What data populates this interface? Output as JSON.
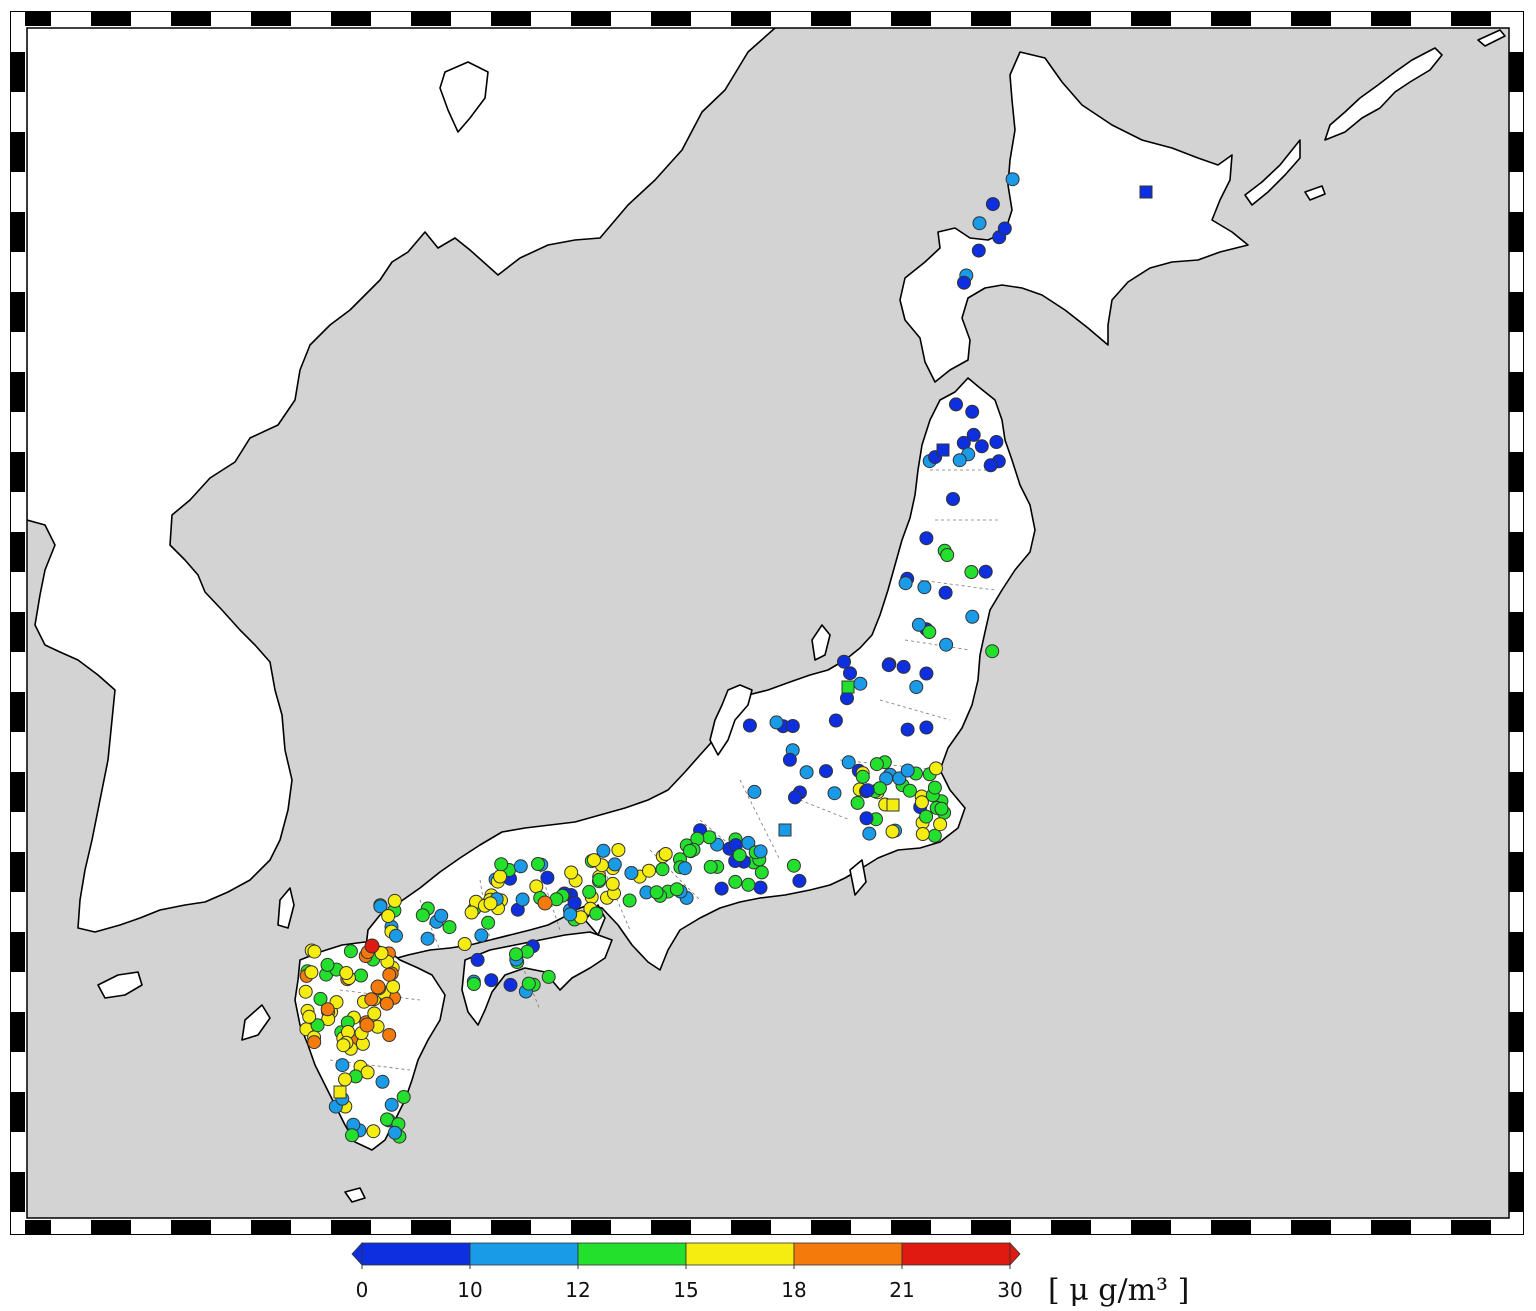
{
  "map": {
    "background_color": "#d3d3d3",
    "land_color": "#ffffff",
    "frame_colors": [
      "#000000",
      "#ffffff"
    ]
  },
  "legend": {
    "ticks": [
      "0",
      "10",
      "12",
      "15",
      "18",
      "21",
      "30"
    ],
    "colors": [
      "#0d2fe0",
      "#1a9be8",
      "#22e02c",
      "#f5ec10",
      "#f57a0c",
      "#e01a10"
    ],
    "units": "[ μ g/m³ ]"
  },
  "stations": {
    "marker_shapes": [
      "circle",
      "square"
    ]
  }
}
